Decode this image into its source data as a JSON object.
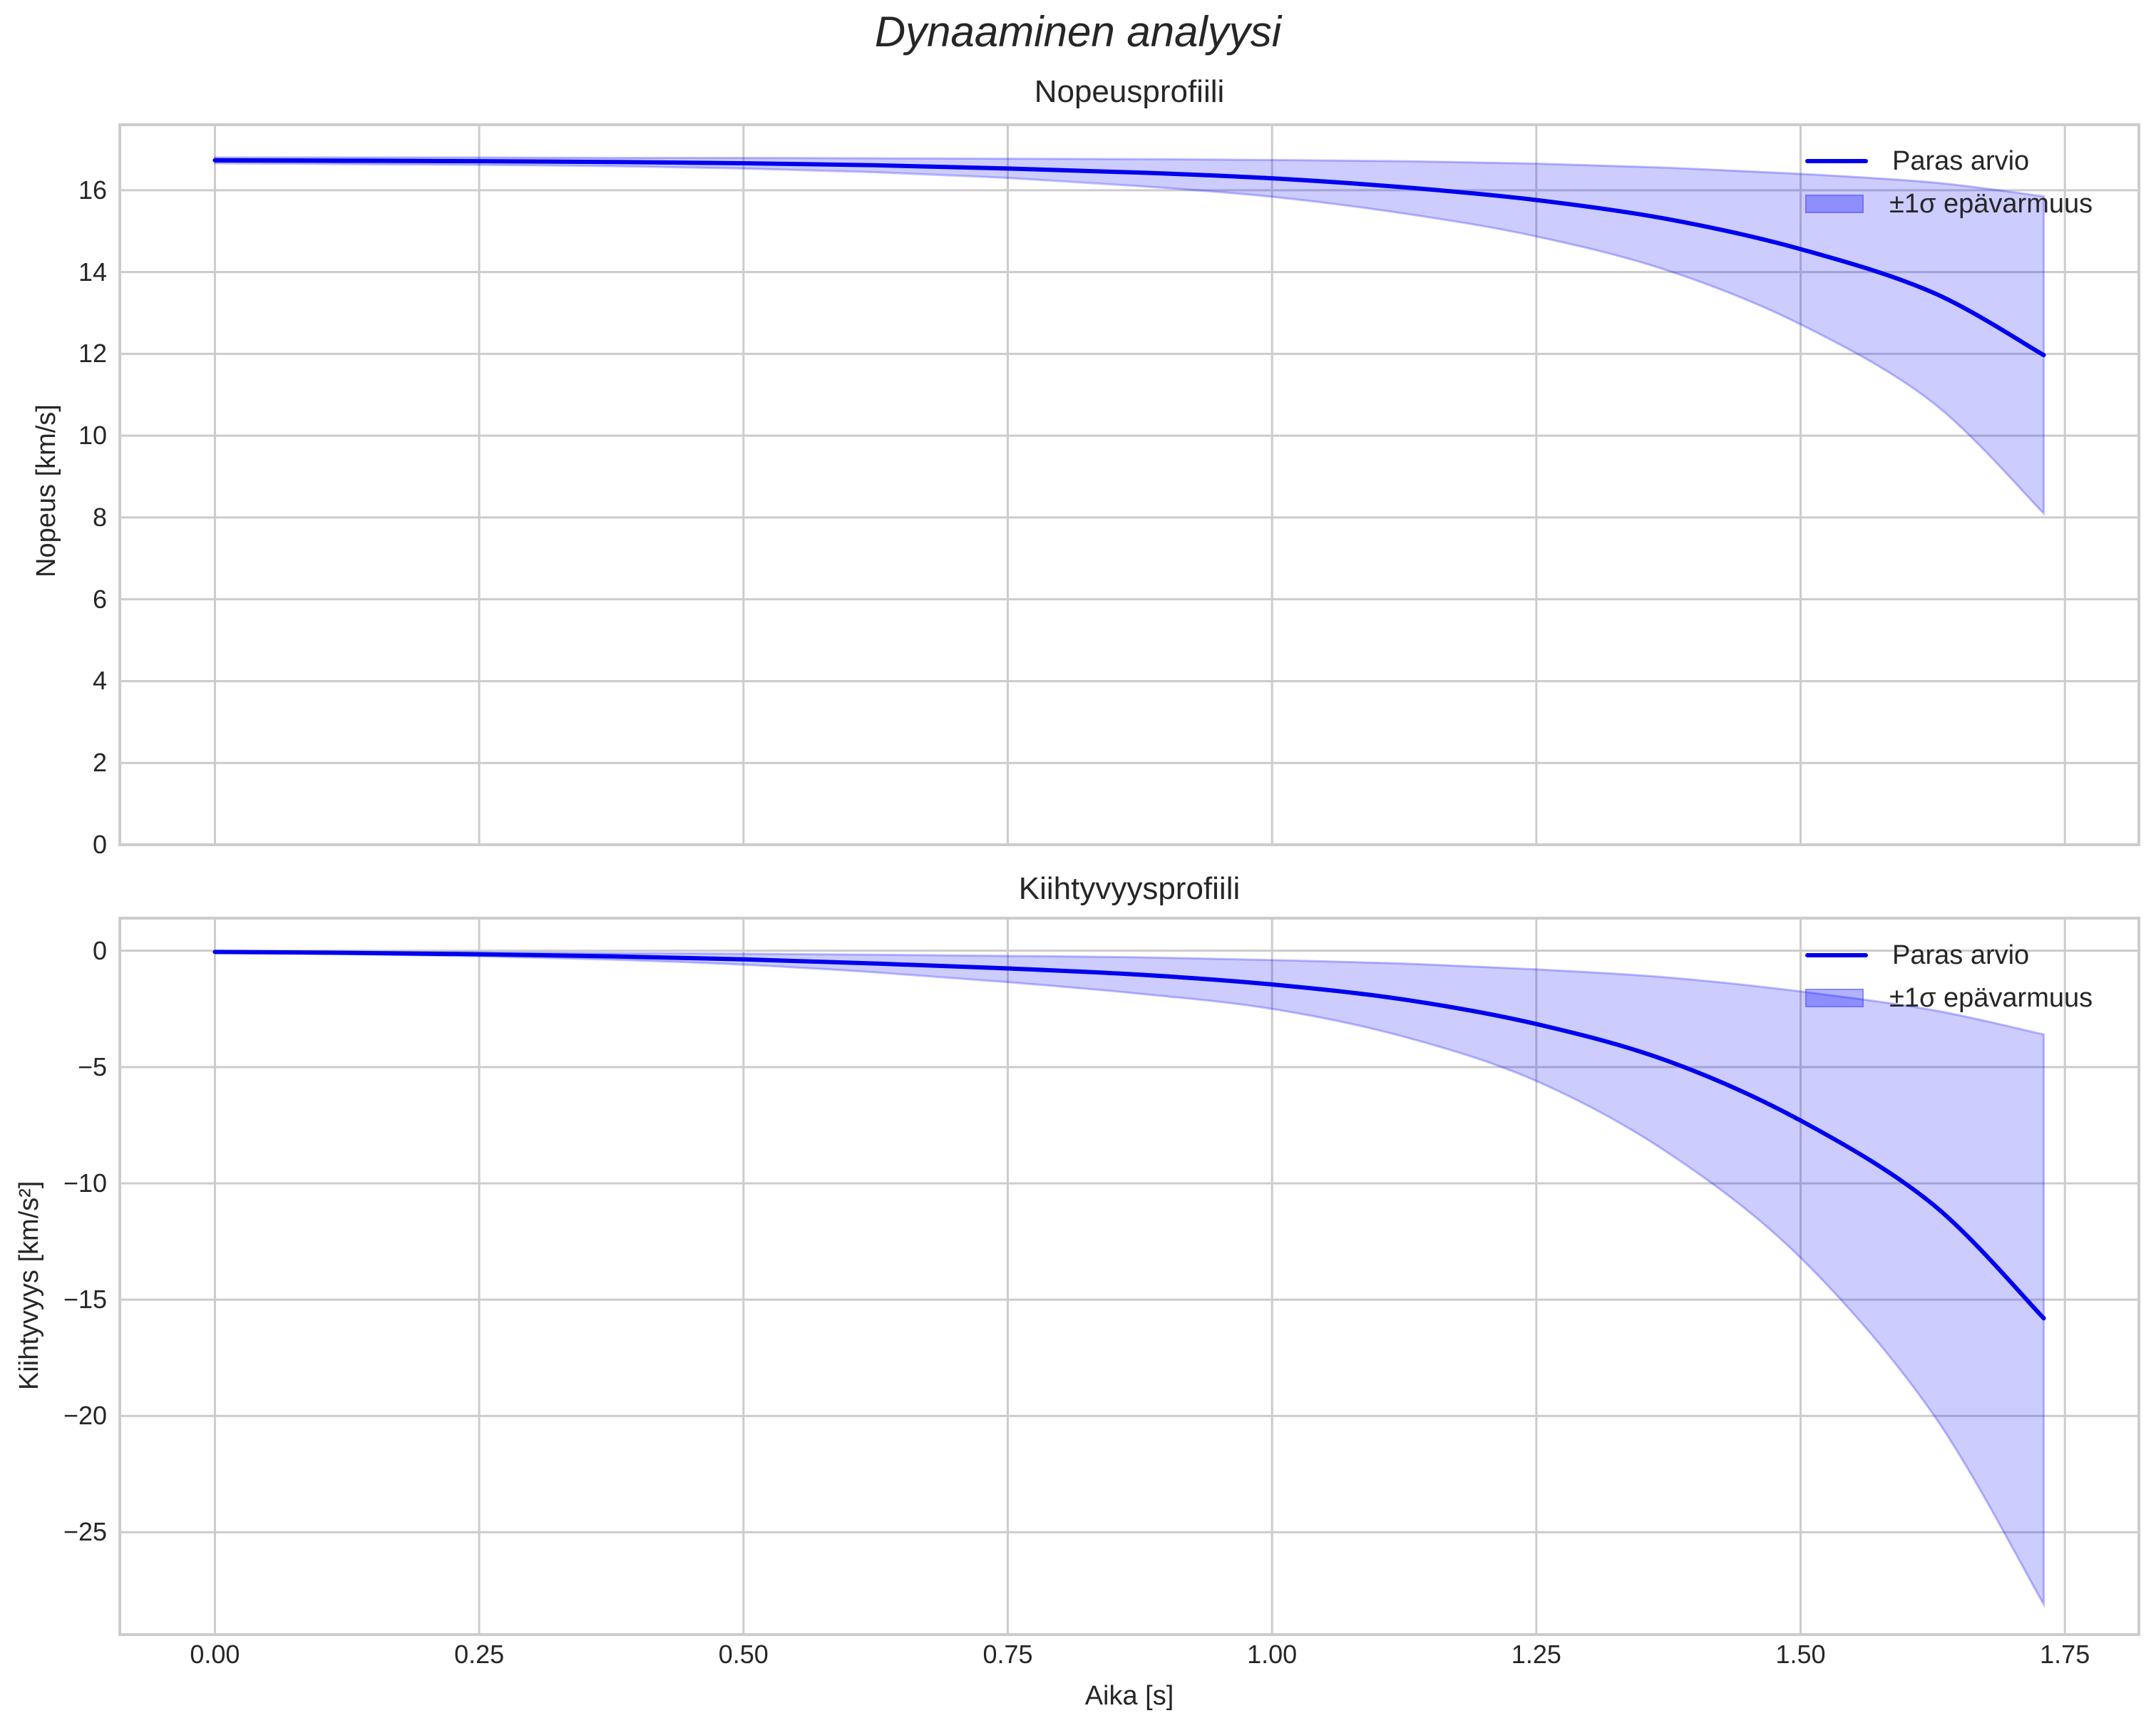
{
  "figure": {
    "suptitle": "Dynaaminen analyysi",
    "xlabel": "Aika [s]",
    "x_ticks": [
      "0.00",
      "0.25",
      "0.50",
      "0.75",
      "1.00",
      "1.25",
      "1.50",
      "1.75"
    ]
  },
  "panels": [
    {
      "title": "Nopeusprofiili",
      "ylabel": "Nopeus [km/s]",
      "y_ticks": [
        "0",
        "2",
        "4",
        "6",
        "8",
        "10",
        "12",
        "14",
        "16"
      ],
      "legend": {
        "line": "Paras arvio",
        "band": "±1σ epävarmuus"
      }
    },
    {
      "title": "Kiihtyvyysprofiili",
      "ylabel": "Kiihtyvyys [km/s²]",
      "y_ticks": [
        "0",
        "−5",
        "−10",
        "−15",
        "−20",
        "−25"
      ],
      "legend": {
        "line": "Paras arvio",
        "band": "±1σ epävarmuus"
      }
    }
  ],
  "colors": {
    "line": "#0000ee",
    "band": "#0000ff",
    "grid": "#cccccc"
  },
  "chart_data": [
    {
      "type": "line",
      "title": "Nopeusprofiili",
      "xlabel": "Aika [s]",
      "ylabel": "Nopeus [km/s]",
      "xlim": [
        -0.09,
        1.82
      ],
      "ylim": [
        0,
        17.6
      ],
      "grid": true,
      "legend_position": "upper right",
      "x": [
        0.0,
        0.125,
        0.25,
        0.375,
        0.5,
        0.625,
        0.75,
        0.875,
        1.0,
        1.125,
        1.25,
        1.375,
        1.5,
        1.625,
        1.73
      ],
      "series": [
        {
          "name": "Paras arvio",
          "values": [
            16.73,
            16.72,
            16.71,
            16.69,
            16.66,
            16.61,
            16.53,
            16.43,
            16.29,
            16.07,
            15.76,
            15.29,
            14.56,
            13.5,
            11.97
          ]
        },
        {
          "name": "±1σ epävarmuus (yläraja)",
          "values": [
            16.8,
            16.8,
            16.8,
            16.79,
            16.79,
            16.78,
            16.77,
            16.76,
            16.74,
            16.71,
            16.65,
            16.55,
            16.4,
            16.19,
            15.85
          ]
        },
        {
          "name": "±1σ epävarmuus (alaraja)",
          "values": [
            16.66,
            16.64,
            16.62,
            16.59,
            16.53,
            16.44,
            16.3,
            16.1,
            15.84,
            15.43,
            14.87,
            14.03,
            12.72,
            10.81,
            8.1
          ]
        }
      ]
    },
    {
      "type": "line",
      "title": "Kiihtyvyysprofiili",
      "xlabel": "Aika [s]",
      "ylabel": "Kiihtyvyys [km/s²]",
      "xlim": [
        -0.09,
        1.82
      ],
      "ylim": [
        -29.4,
        1.4
      ],
      "grid": true,
      "legend_position": "upper right",
      "x": [
        0.0,
        0.125,
        0.25,
        0.375,
        0.5,
        0.625,
        0.75,
        0.875,
        1.0,
        1.125,
        1.25,
        1.375,
        1.5,
        1.625,
        1.73
      ],
      "series": [
        {
          "name": "Paras arvio",
          "values": [
            -0.05,
            -0.09,
            -0.15,
            -0.24,
            -0.37,
            -0.55,
            -0.76,
            -1.03,
            -1.45,
            -2.1,
            -3.15,
            -4.75,
            -7.3,
            -10.9,
            -15.8
          ]
        },
        {
          "name": "±1σ epävarmuus (yläraja)",
          "values": [
            -0.03,
            -0.05,
            -0.07,
            -0.1,
            -0.13,
            -0.17,
            -0.22,
            -0.28,
            -0.4,
            -0.55,
            -0.8,
            -1.15,
            -1.75,
            -2.55,
            -3.6
          ]
        },
        {
          "name": "±1σ epävarmuus (alaraja)",
          "values": [
            -0.07,
            -0.14,
            -0.24,
            -0.38,
            -0.6,
            -0.93,
            -1.35,
            -1.85,
            -2.5,
            -3.7,
            -5.6,
            -8.7,
            -13.2,
            -19.9,
            -28.1
          ]
        }
      ]
    }
  ]
}
